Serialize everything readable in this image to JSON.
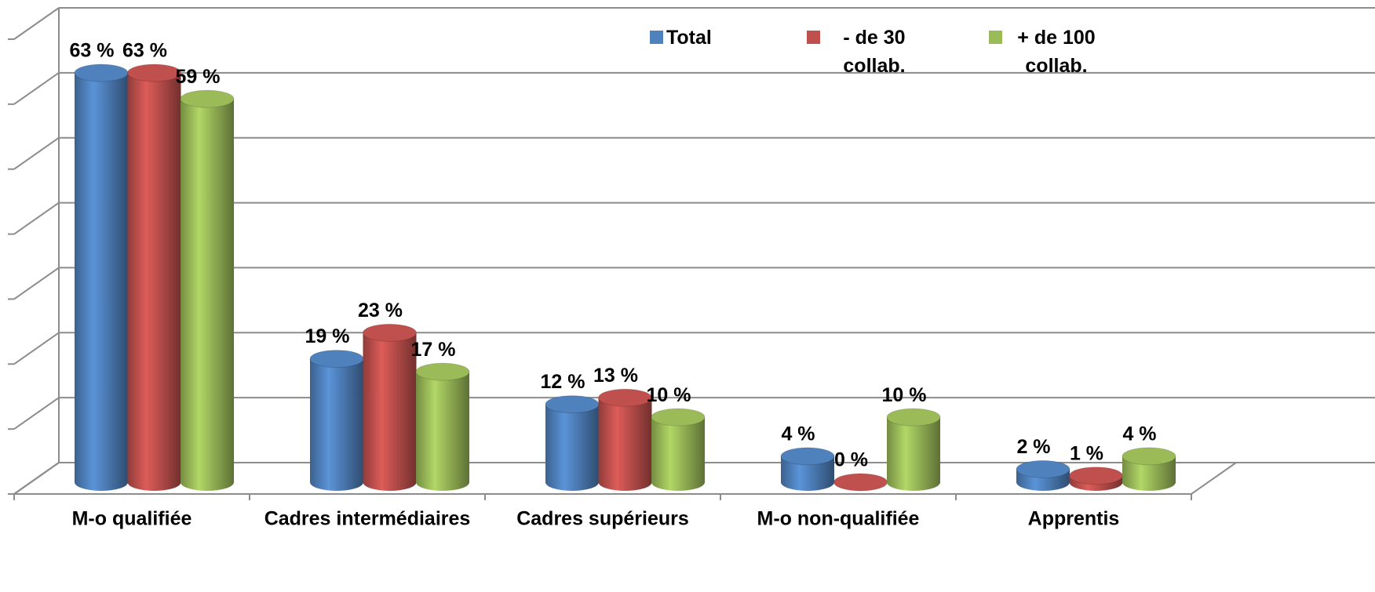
{
  "chart_data": {
    "type": "bar",
    "categories": [
      "M-o qualifiée",
      "Cadres intermédiaires",
      "Cadres supérieurs",
      "M-o non-qualifiée",
      "Apprentis"
    ],
    "series": [
      {
        "name": "Total",
        "color": "#4f81bd",
        "values": [
          63,
          19,
          12,
          4,
          2
        ],
        "value_labels": [
          "63 %",
          "19 %",
          "12 %",
          "4 %",
          "2 %"
        ]
      },
      {
        "name": "- de 30 collab.",
        "color": "#c0504d",
        "values": [
          63,
          23,
          13,
          0,
          1
        ],
        "value_labels": [
          "63 %",
          "23 %",
          "13 %",
          "0 %",
          "1 %"
        ]
      },
      {
        "name": "+ de 100 collab.",
        "color": "#9bbb59",
        "values": [
          59,
          17,
          10,
          10,
          4
        ],
        "value_labels": [
          "59 %",
          "17 %",
          "10 %",
          "10 %",
          "4 %"
        ]
      }
    ],
    "ylim": [
      0,
      70
    ],
    "yticks": [
      0,
      10,
      20,
      30,
      40,
      50,
      60,
      70
    ],
    "grid": true
  }
}
